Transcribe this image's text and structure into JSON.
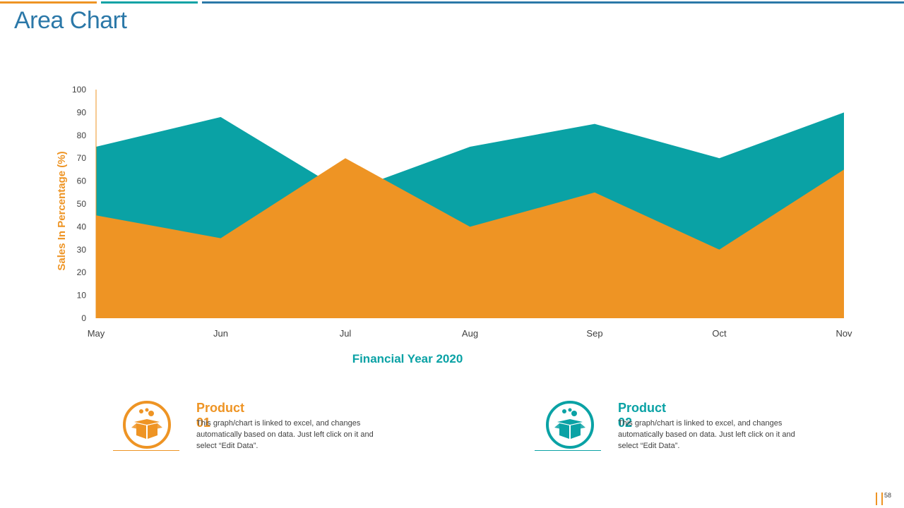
{
  "title": "Area Chart",
  "colors": {
    "accent_orange": "#ee9424",
    "accent_teal": "#0aa2a5",
    "title_blue": "#2b78a8"
  },
  "chart_data": {
    "type": "area",
    "categories": [
      "May",
      "Jun",
      "Jul",
      "Aug",
      "Sep",
      "Oct",
      "Nov"
    ],
    "series": [
      {
        "values": [
          75,
          88,
          55,
          75,
          85,
          70,
          90
        ],
        "color": "#0aa2a5"
      },
      {
        "values": [
          45,
          35,
          70,
          40,
          55,
          30,
          65
        ],
        "color": "#ee9424"
      }
    ],
    "xlabel": "Financial Year 2020",
    "ylabel": "Sales In Percentage (%)",
    "ylim": [
      0,
      100
    ],
    "yticks": [
      0,
      10,
      20,
      30,
      40,
      50,
      60,
      70,
      80,
      90,
      100
    ],
    "grid": false,
    "legend": "none"
  },
  "products": [
    {
      "heading": "Product 01",
      "icon": "box-icon",
      "color": "#ee9424",
      "desc_lines": [
        "This graph/chart is linked to excel, and changes",
        "automatically based on data. Just left click on it and",
        "select “Edit Data”."
      ]
    },
    {
      "heading": "Product 02",
      "icon": "box-icon",
      "color": "#0aa2a5",
      "desc_lines": [
        "This graph/chart is linked to excel, and changes",
        "automatically based on data. Just left click on it and",
        "select “Edit Data”."
      ]
    }
  ],
  "page_number": "58"
}
